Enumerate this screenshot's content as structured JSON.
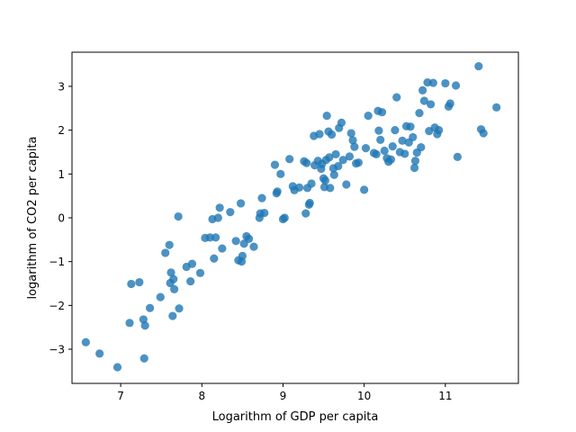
{
  "chart_data": {
    "type": "scatter",
    "title": "",
    "xlabel": "Logarithm of GDP per capita",
    "ylabel": "logarithm of CO2 per capita",
    "xlim": [
      6.4,
      11.9
    ],
    "ylim": [
      -3.78,
      3.78
    ],
    "xticks": [
      7,
      8,
      9,
      10,
      11
    ],
    "yticks": [
      -3,
      -2,
      -1,
      0,
      1,
      2,
      3
    ],
    "grid": false,
    "legend": "none",
    "point_color": "#1f77b4",
    "series": [
      {
        "x": [
          6.57,
          6.74,
          6.96,
          7.11,
          7.13,
          7.23,
          7.28,
          7.29,
          7.3,
          7.36,
          7.49,
          7.55,
          7.6,
          7.61,
          7.62,
          7.64,
          7.65,
          7.66,
          7.71,
          7.72,
          7.81,
          7.86,
          7.88,
          7.98,
          8.04,
          8.1,
          8.13,
          8.15,
          8.17,
          8.2,
          8.22,
          8.25,
          8.35,
          8.42,
          8.45,
          8.48,
          8.49,
          8.5,
          8.52,
          8.55,
          8.58,
          8.64,
          8.71,
          8.72,
          8.74,
          8.77,
          8.9,
          8.92,
          8.93,
          8.97,
          9.0,
          9.02,
          9.08,
          9.12,
          9.14,
          9.2,
          9.26,
          9.28,
          9.29,
          9.3,
          9.32,
          9.33,
          9.35,
          9.38,
          9.39,
          9.43,
          9.45,
          9.47,
          9.48,
          9.5,
          9.51,
          9.52,
          9.53,
          9.54,
          9.56,
          9.57,
          9.58,
          9.6,
          9.62,
          9.63,
          9.65,
          9.68,
          9.69,
          9.72,
          9.74,
          9.78,
          9.82,
          9.84,
          9.86,
          9.88,
          9.9,
          9.93,
          10.0,
          10.02,
          10.05,
          10.12,
          10.15,
          10.17,
          10.18,
          10.2,
          10.22,
          10.25,
          10.28,
          10.3,
          10.33,
          10.35,
          10.38,
          10.4,
          10.44,
          10.47,
          10.5,
          10.52,
          10.55,
          10.57,
          10.6,
          10.62,
          10.63,
          10.65,
          10.68,
          10.7,
          10.72,
          10.74,
          10.78,
          10.8,
          10.82,
          10.85,
          10.87,
          10.9,
          10.92,
          11.0,
          11.04,
          11.06,
          11.13,
          11.15,
          11.41,
          11.44,
          11.47,
          11.63
        ],
        "y": [
          -2.84,
          -3.1,
          -3.41,
          -2.4,
          -1.51,
          -1.47,
          -2.32,
          -3.21,
          -2.46,
          -2.06,
          -1.81,
          -0.8,
          -0.62,
          -1.49,
          -1.25,
          -2.24,
          -1.4,
          -1.63,
          0.03,
          -2.07,
          -1.12,
          -1.45,
          -1.05,
          -1.26,
          -0.46,
          -0.45,
          -0.03,
          -0.93,
          -0.45,
          0.0,
          0.23,
          -0.7,
          0.13,
          -0.53,
          -0.97,
          0.33,
          -1.0,
          -0.87,
          -0.59,
          -0.42,
          -0.48,
          -0.66,
          0.0,
          0.1,
          0.45,
          0.11,
          1.21,
          0.56,
          0.6,
          1.0,
          -0.03,
          0.0,
          1.34,
          0.72,
          0.63,
          0.69,
          1.29,
          0.1,
          1.25,
          0.68,
          0.3,
          0.34,
          0.78,
          1.87,
          1.2,
          1.3,
          1.91,
          1.12,
          1.23,
          0.9,
          0.7,
          0.85,
          1.32,
          2.33,
          1.97,
          1.38,
          0.68,
          1.9,
          1.13,
          0.98,
          1.45,
          1.18,
          2.05,
          2.17,
          1.32,
          0.76,
          1.4,
          1.93,
          1.77,
          1.62,
          1.24,
          1.26,
          0.64,
          1.59,
          2.33,
          1.48,
          1.45,
          2.44,
          1.99,
          1.78,
          2.41,
          1.53,
          1.36,
          1.28,
          1.33,
          1.63,
          2.0,
          2.75,
          1.5,
          1.76,
          1.46,
          2.09,
          1.72,
          2.08,
          1.84,
          1.14,
          1.3,
          1.49,
          2.39,
          1.61,
          2.91,
          2.67,
          3.09,
          1.98,
          2.59,
          3.08,
          2.06,
          1.91,
          2.0,
          3.07,
          2.54,
          2.61,
          3.02,
          1.39,
          3.46,
          2.02,
          1.93,
          2.52
        ]
      }
    ]
  }
}
